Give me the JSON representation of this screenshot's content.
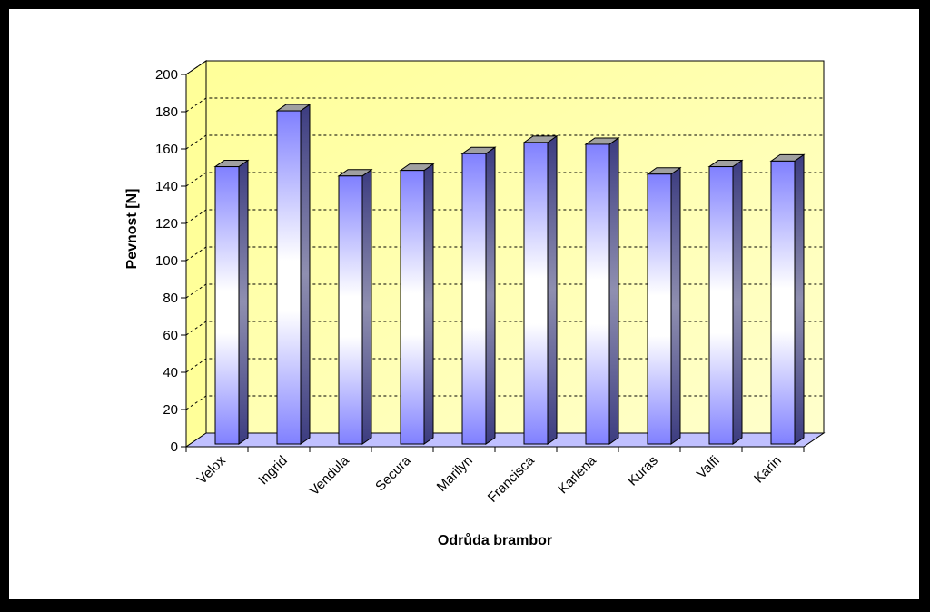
{
  "chart_data": {
    "type": "bar",
    "title": "",
    "xlabel": "Odrůda brambor",
    "ylabel": "Pevnost [N]",
    "ylim": [
      0,
      200
    ],
    "yticks": [
      0,
      20,
      40,
      60,
      80,
      100,
      120,
      140,
      160,
      180,
      200
    ],
    "categories": [
      "Velox",
      "Ingrid",
      "Vendula",
      "Secura",
      "Marilyn",
      "Francisca",
      "Karlena",
      "Kuras",
      "Valfi",
      "Karin"
    ],
    "values": [
      149,
      179,
      144,
      147,
      156,
      162,
      161,
      145,
      149,
      152
    ],
    "grid": "horizontal-dashed",
    "legend": "none",
    "colors": {
      "frame": "#000000",
      "background": "#ffffff",
      "wall": "#ffff99",
      "floor": "#c0c0ff",
      "bar_edge": "#8080ff",
      "bar_center": "#ffffff",
      "bar_side": "#4a4a90",
      "bar_top": "#a0a0a0"
    }
  }
}
